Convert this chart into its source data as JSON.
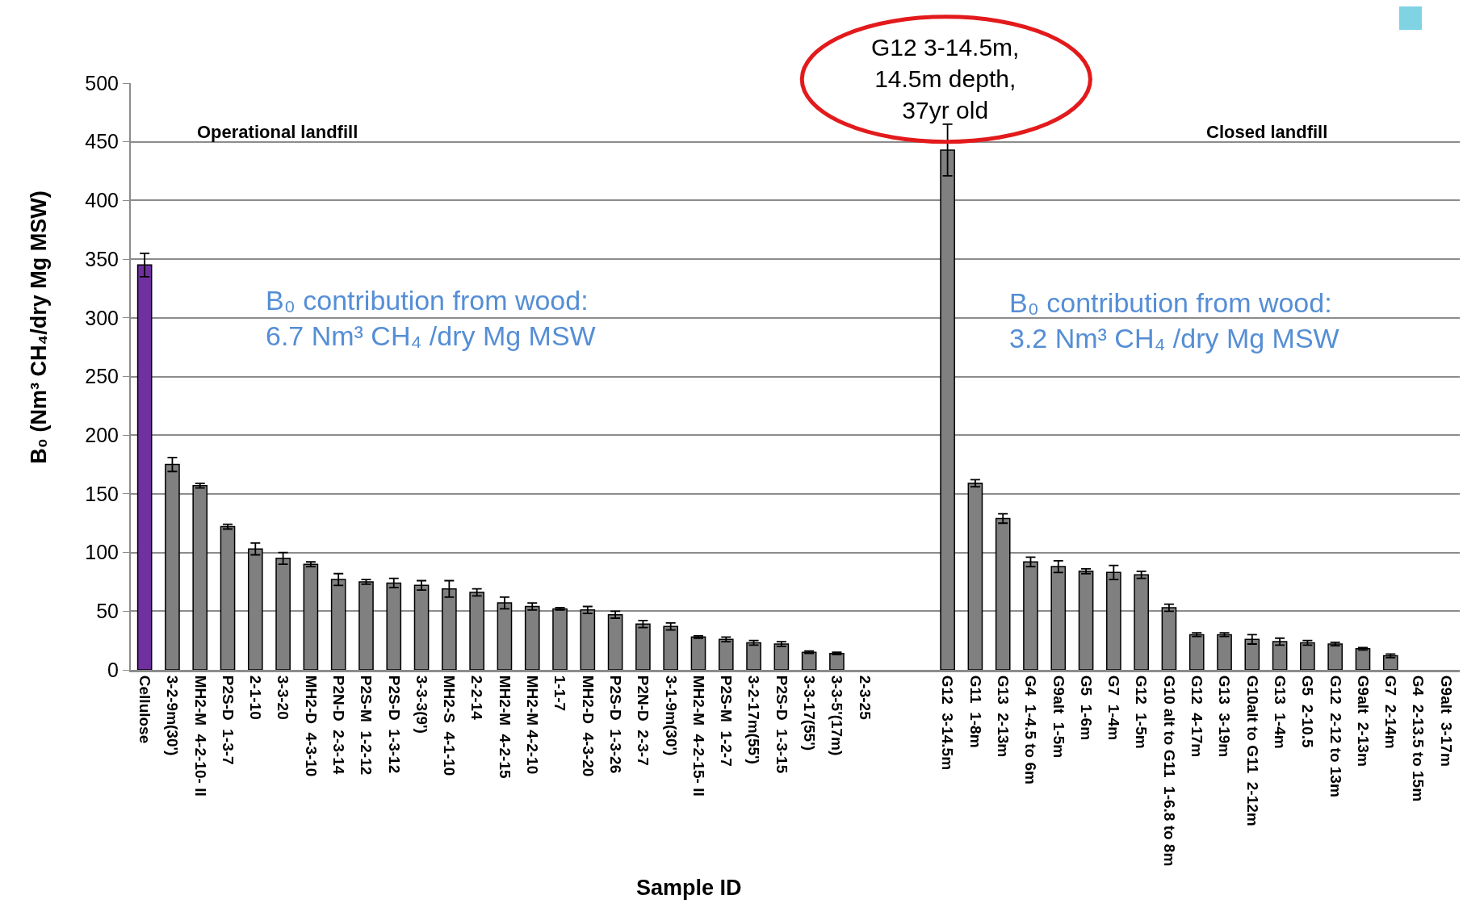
{
  "chart_data": {
    "type": "bar",
    "xlabel": "Sample ID",
    "ylabel": "B₀ (Nm³ CH₄/dry Mg MSW)",
    "categories": [
      "Cellulose",
      "3-2-9m(30')",
      "MH2-M  4-2-10- II",
      "P2S-D  1-3-7",
      "2-1-10",
      "3-3-20",
      "MH2-D  4-3-10",
      "P2N-D  2-3-14",
      "P2S-M  1-2-12",
      "P2S-D  1-3-12",
      "3-3-3(9')",
      "MH2-S  4-1-10",
      "2-2-14",
      "MH2-M  4-2-15",
      "MH2-M 4-2-10",
      "1-1-7",
      "MH2-D  4-3-20",
      "P2S-D  1-3-26",
      "P2N-D  2-3-7",
      "3-1-9m(30')",
      "MH2-M  4-2-15- II",
      "P2S-M  1-2-7",
      "3-2-17m(55')",
      "P2S-D  1-3-15",
      "3-3-17(55')",
      "3-3-5'(17m)",
      "2-3-25",
      null,
      null,
      "G12  3-14.5m",
      "G11  1-8m",
      "G13  2-13m",
      "G4  1-4.5 to 6m",
      "G9alt  1-5m",
      "G5  1-6m",
      "G7  1-4m",
      "G12  1-5m",
      "G10 alt to G11  1-6.8 to 8m",
      "G12  4-17m",
      "G13  3-19m",
      "G10alt to G11  2-12m",
      "G13  1-4m",
      "G5  2-10.5",
      "G12  2-12 to 13m",
      "G9alt  2-13m",
      "G7  2-14m",
      "G4  2-13.5 to 15m",
      "G9alt  3-17m"
    ],
    "values": [
      345,
      175,
      157,
      122,
      103,
      95,
      90,
      77,
      75,
      74,
      72,
      69,
      66,
      57,
      54,
      52,
      51,
      47,
      39,
      37,
      28,
      26,
      23,
      22,
      15,
      14,
      null,
      null,
      null,
      443,
      159,
      129,
      92,
      88,
      84,
      83,
      81,
      53,
      30,
      30,
      26,
      24,
      23,
      22,
      18,
      12,
      null,
      null
    ],
    "errors": [
      10,
      6,
      2,
      2,
      5,
      5,
      2,
      5,
      2,
      4,
      4,
      7,
      3,
      5,
      3,
      1,
      3,
      3,
      3,
      3,
      1,
      2,
      2,
      2,
      1,
      1,
      null,
      null,
      null,
      22,
      3,
      4,
      4,
      5,
      2,
      6,
      3,
      3,
      1.5,
      1.5,
      4,
      3,
      2,
      1.5,
      1,
      1.5,
      null,
      null
    ],
    "colors": [
      "#7030a0",
      "#808080",
      "#808080",
      "#808080",
      "#808080",
      "#808080",
      "#808080",
      "#808080",
      "#808080",
      "#808080",
      "#808080",
      "#808080",
      "#808080",
      "#808080",
      "#808080",
      "#808080",
      "#808080",
      "#808080",
      "#808080",
      "#808080",
      "#808080",
      "#808080",
      "#808080",
      "#808080",
      "#808080",
      "#808080",
      "#808080",
      "#808080",
      "#808080",
      "#808080",
      "#808080",
      "#808080",
      "#808080",
      "#808080",
      "#808080",
      "#808080",
      "#808080",
      "#808080",
      "#808080",
      "#808080",
      "#808080",
      "#808080",
      "#808080",
      "#808080",
      "#808080",
      "#808080",
      "#808080",
      "#808080"
    ],
    "ylim": [
      0,
      500
    ],
    "yticks": [
      0,
      50,
      100,
      150,
      200,
      250,
      300,
      350,
      400,
      450,
      500
    ],
    "grid": "y",
    "annotations": [
      "Operational landfill",
      "Closed landfill",
      "B₀ contribution from wood:\n6.7 Nm³ CH₄ /dry Mg MSW",
      "B₀ contribution from wood:\n3.2 Nm³ CH₄ /dry Mg MSW",
      "G12 3-14.5m,\n14.5m depth,\n37yr old"
    ]
  }
}
